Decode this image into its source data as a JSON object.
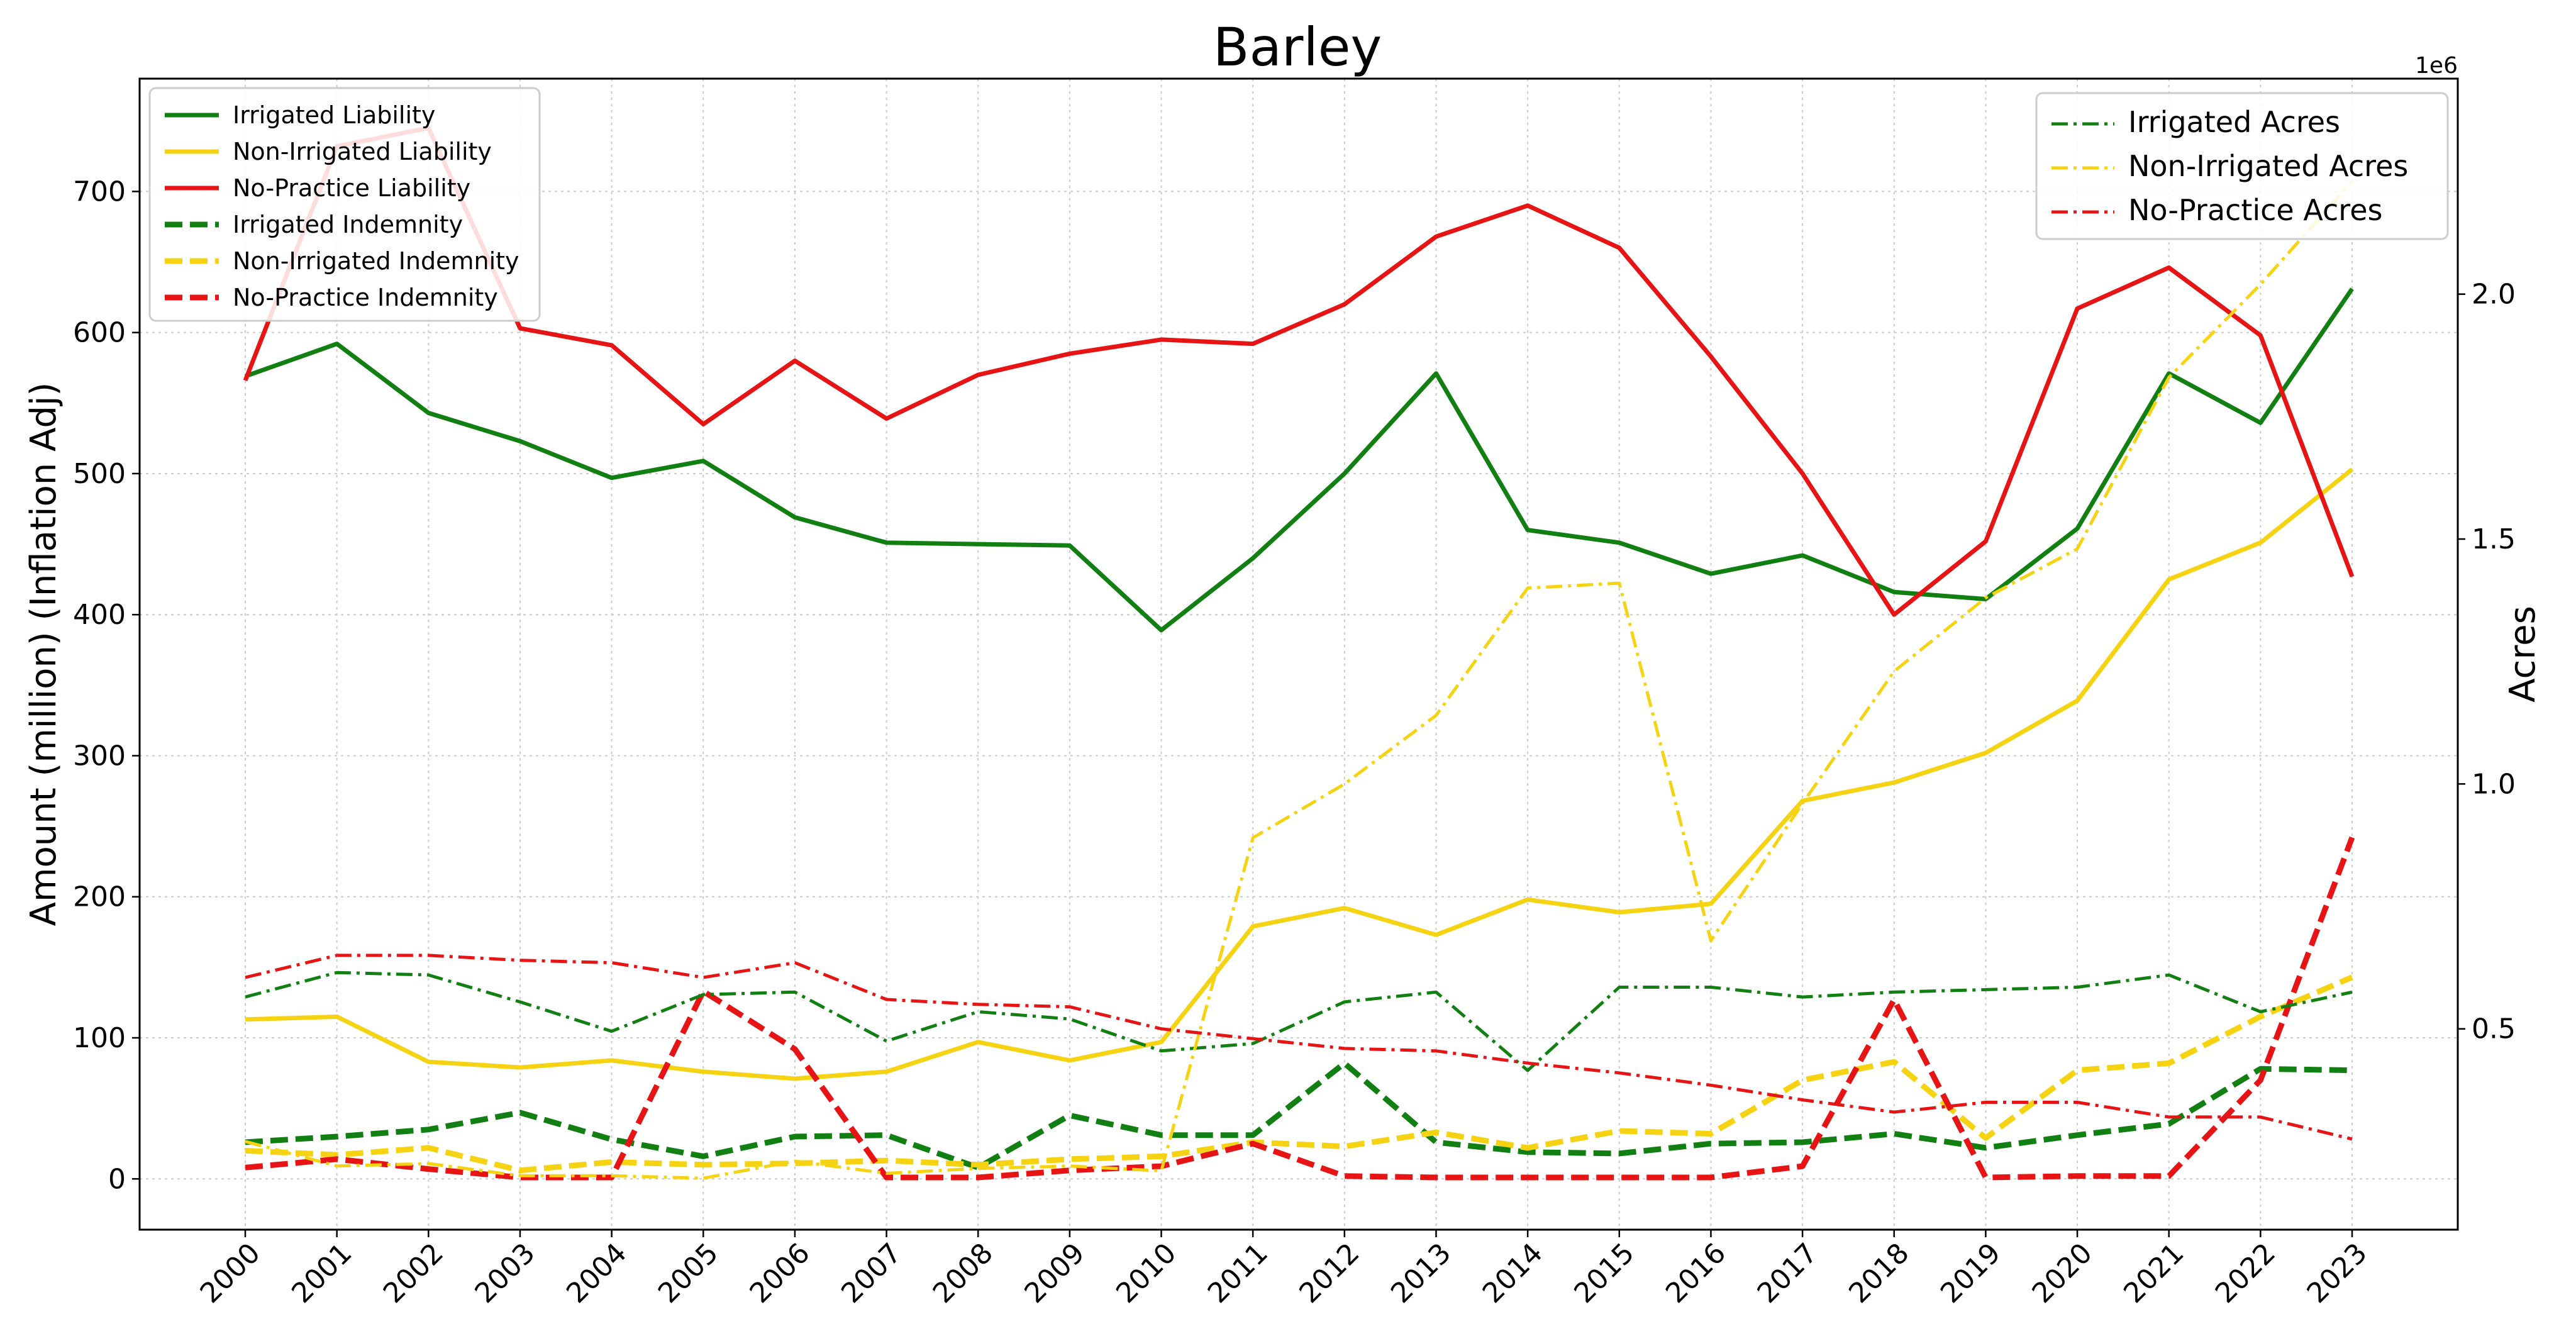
{
  "chart_data": {
    "type": "line",
    "title": "Barley",
    "ylabel": "Amount (million) (Inflation Adj)",
    "y2label": "Acres",
    "y2_offset_label": "1e6",
    "x": [
      2000,
      2001,
      2002,
      2003,
      2004,
      2005,
      2006,
      2007,
      2008,
      2009,
      2010,
      2011,
      2012,
      2013,
      2014,
      2015,
      2016,
      2017,
      2018,
      2019,
      2020,
      2021,
      2022,
      2023
    ],
    "ylim": [
      -36,
      780
    ],
    "y_ticks": [
      0,
      100,
      200,
      300,
      400,
      500,
      600,
      700
    ],
    "y2lim": [
      90000,
      2440000
    ],
    "y2_ticks": [
      500000,
      1000000,
      1500000,
      2000000
    ],
    "y2_tick_labels": [
      "0.5",
      "1.0",
      "1.5",
      "2.0"
    ],
    "grid": true,
    "legend_left_position": "top-left",
    "legend_right_position": "top-right",
    "series": [
      {
        "name": "Irrigated Liability",
        "axis": "left",
        "style": "solid",
        "color": "#117f11",
        "values": [
          569,
          592,
          543,
          523,
          497,
          509,
          469,
          451,
          450,
          449,
          389,
          440,
          500,
          571,
          460,
          451,
          429,
          442,
          416,
          411,
          461,
          571,
          536,
          631
        ]
      },
      {
        "name": "Non-Irrigated Liability",
        "axis": "left",
        "style": "solid",
        "color": "#f5d313",
        "values": [
          113,
          115,
          83,
          79,
          84,
          76,
          71,
          76,
          97,
          84,
          97,
          179,
          192,
          173,
          198,
          189,
          195,
          268,
          281,
          302,
          339,
          425,
          451,
          503
        ]
      },
      {
        "name": "No-Practice Liability",
        "axis": "left",
        "style": "solid",
        "color": "#e61414",
        "values": [
          566,
          732,
          745,
          603,
          591,
          535,
          580,
          539,
          570,
          585,
          595,
          592,
          620,
          668,
          690,
          660,
          583,
          500,
          400,
          452,
          617,
          646,
          598,
          427
        ]
      },
      {
        "name": "Irrigated Indemnity",
        "axis": "left",
        "style": "dashed",
        "color": "#117f11",
        "values": [
          26,
          30,
          35,
          47,
          28,
          16,
          30,
          31,
          8,
          45,
          31,
          31,
          82,
          26,
          19,
          18,
          25,
          26,
          32,
          22,
          31,
          39,
          78,
          77
        ]
      },
      {
        "name": "Non-Irrigated Indemnity",
        "axis": "left",
        "style": "dashed",
        "color": "#f5d313",
        "values": [
          20,
          17,
          22,
          6,
          12,
          10,
          11,
          13,
          10,
          14,
          16,
          26,
          23,
          33,
          22,
          34,
          32,
          70,
          83,
          29,
          77,
          82,
          115,
          143
        ]
      },
      {
        "name": "No-Practice Indemnity",
        "axis": "left",
        "style": "dashed",
        "color": "#e61414",
        "values": [
          8,
          14,
          7,
          1,
          1,
          133,
          92,
          1,
          1,
          6,
          9,
          25,
          2,
          1,
          1,
          1,
          1,
          9,
          127,
          1,
          2,
          2,
          70,
          242
        ]
      },
      {
        "name": "Irrigated Acres",
        "axis": "right",
        "style": "dashdot",
        "color": "#117f11",
        "values": [
          565000,
          615000,
          610000,
          555000,
          495000,
          570000,
          575000,
          475000,
          535000,
          520000,
          455000,
          470000,
          555000,
          575000,
          415000,
          585000,
          585000,
          565000,
          575000,
          580000,
          585000,
          610000,
          535000,
          575000
        ]
      },
      {
        "name": "Non-Irrigated Acres",
        "axis": "right",
        "style": "dashdot",
        "color": "#f5d313",
        "values": [
          270000,
          220000,
          225000,
          200000,
          200000,
          195000,
          230000,
          205000,
          215000,
          220000,
          210000,
          890000,
          1000000,
          1140000,
          1400000,
          1410000,
          680000,
          960000,
          1230000,
          1380000,
          1480000,
          1830000,
          2020000,
          2230000
        ]
      },
      {
        "name": "No-Practice Acres",
        "axis": "right",
        "style": "dashdot",
        "color": "#e61414",
        "values": [
          605000,
          650000,
          650000,
          640000,
          635000,
          605000,
          635000,
          560000,
          550000,
          545000,
          500000,
          480000,
          460000,
          455000,
          430000,
          410000,
          385000,
          355000,
          330000,
          350000,
          350000,
          320000,
          320000,
          275000
        ]
      }
    ]
  }
}
